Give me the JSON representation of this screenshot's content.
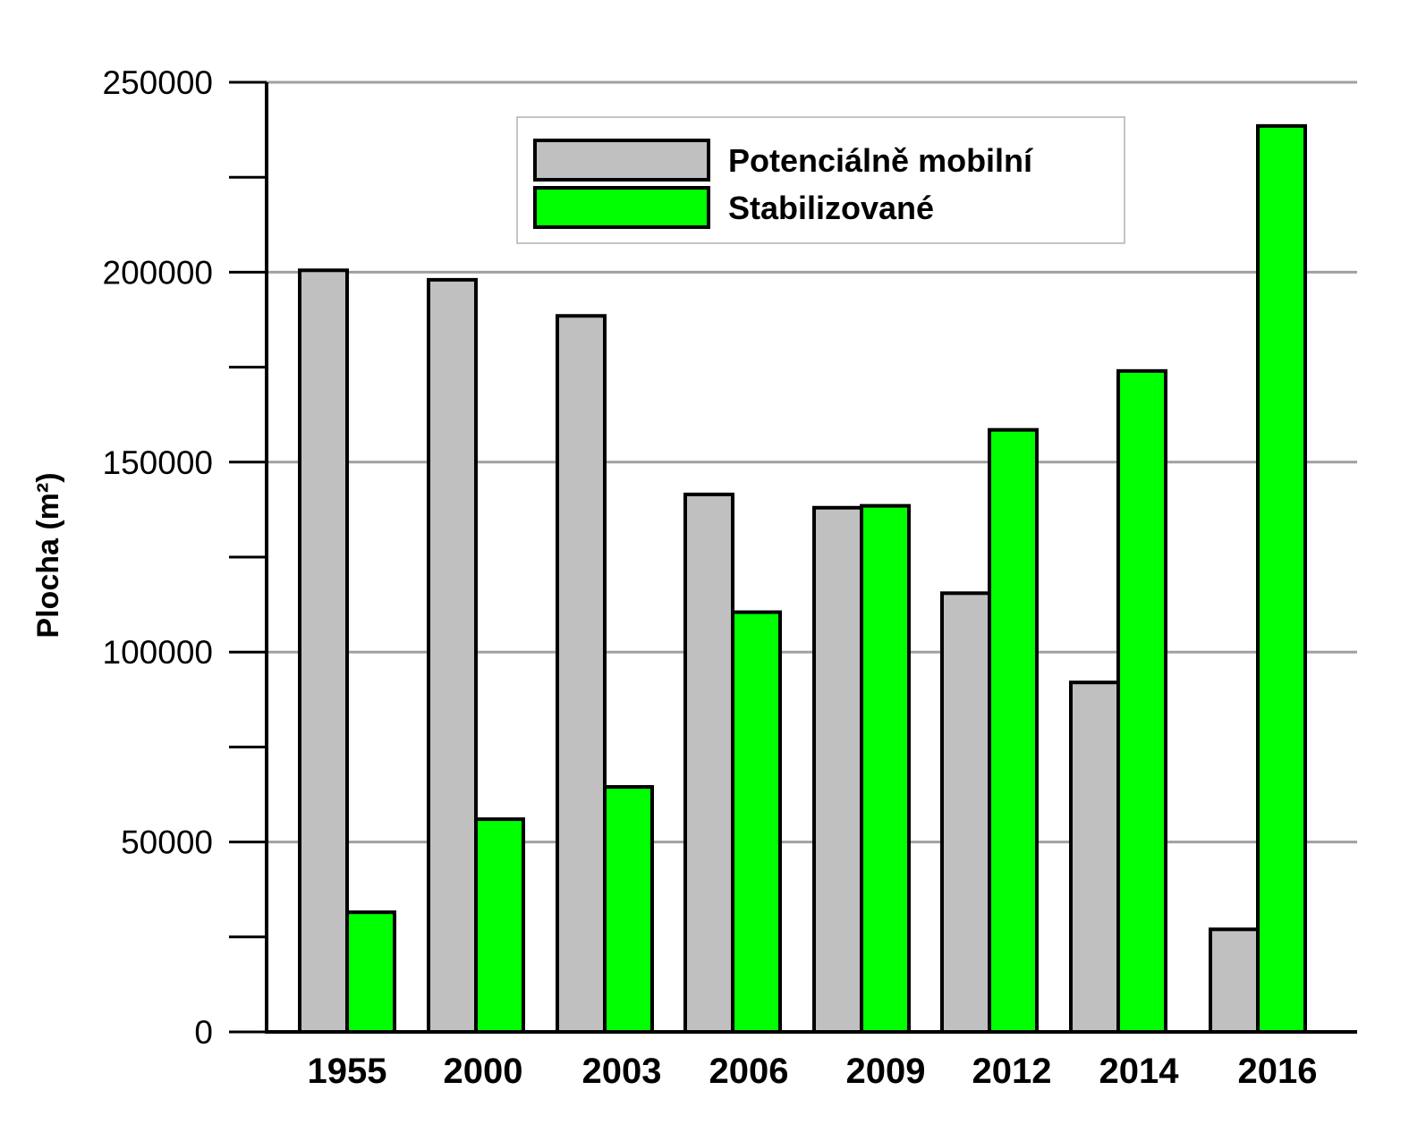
{
  "colors": {
    "series_potencialne": "#c0c0c0",
    "series_stabilizovane": "#00ff00",
    "gridline": "#a0a0a0",
    "axis": "#000000",
    "background": "#ffffff"
  },
  "chart_data": {
    "type": "bar",
    "title": "",
    "xlabel": "",
    "ylabel": "Plocha (m²)",
    "ylim": [
      0,
      250000
    ],
    "y_ticks": [
      "0",
      "50000",
      "100000",
      "150000",
      "200000",
      "250000"
    ],
    "y_tick_values": [
      0,
      50000,
      100000,
      150000,
      200000,
      250000
    ],
    "y_minor_step": 25000,
    "grid": true,
    "legend_position": "top-center",
    "categories": [
      "1955",
      "2000",
      "2003",
      "2006",
      "2009",
      "2012",
      "2014",
      "2016"
    ],
    "series": [
      {
        "name": "Potenciálně mobilní",
        "color": "#c0c0c0",
        "values": [
          200500,
          198000,
          188500,
          141500,
          138000,
          115500,
          92000,
          27000
        ]
      },
      {
        "name": "Stabilizované",
        "color": "#00ff00",
        "values": [
          31500,
          56000,
          64500,
          110500,
          138500,
          158500,
          174000,
          238500
        ]
      }
    ]
  }
}
